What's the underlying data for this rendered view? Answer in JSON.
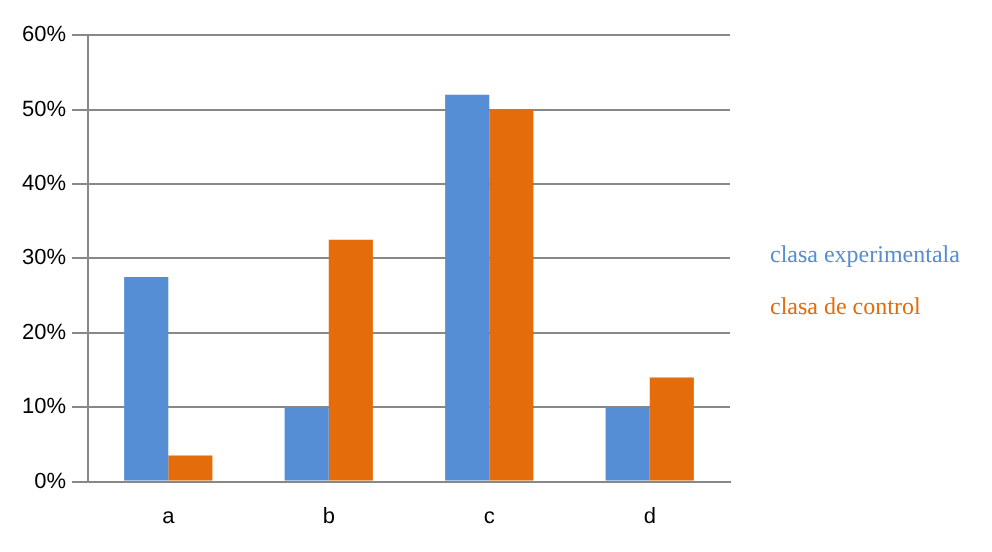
{
  "chart_data": {
    "type": "bar",
    "categories": [
      "a",
      "b",
      "c",
      "d"
    ],
    "series": [
      {
        "name": "clasa experimentala",
        "color": "#558ed5",
        "values": [
          27.5,
          10,
          52,
          10
        ]
      },
      {
        "name": "clasa de control",
        "color": "#e46c0a",
        "values": [
          3.5,
          32.5,
          50,
          14
        ]
      }
    ],
    "ylim": [
      0,
      60
    ],
    "yticks": [
      {
        "value": 0,
        "label": "0%"
      },
      {
        "value": 10,
        "label": "10%"
      },
      {
        "value": 20,
        "label": "20%"
      },
      {
        "value": 30,
        "label": "30%"
      },
      {
        "value": 40,
        "label": "40%"
      },
      {
        "value": 50,
        "label": "50%"
      },
      {
        "value": 60,
        "label": "60%"
      }
    ],
    "grid": "y",
    "legend": "right"
  }
}
